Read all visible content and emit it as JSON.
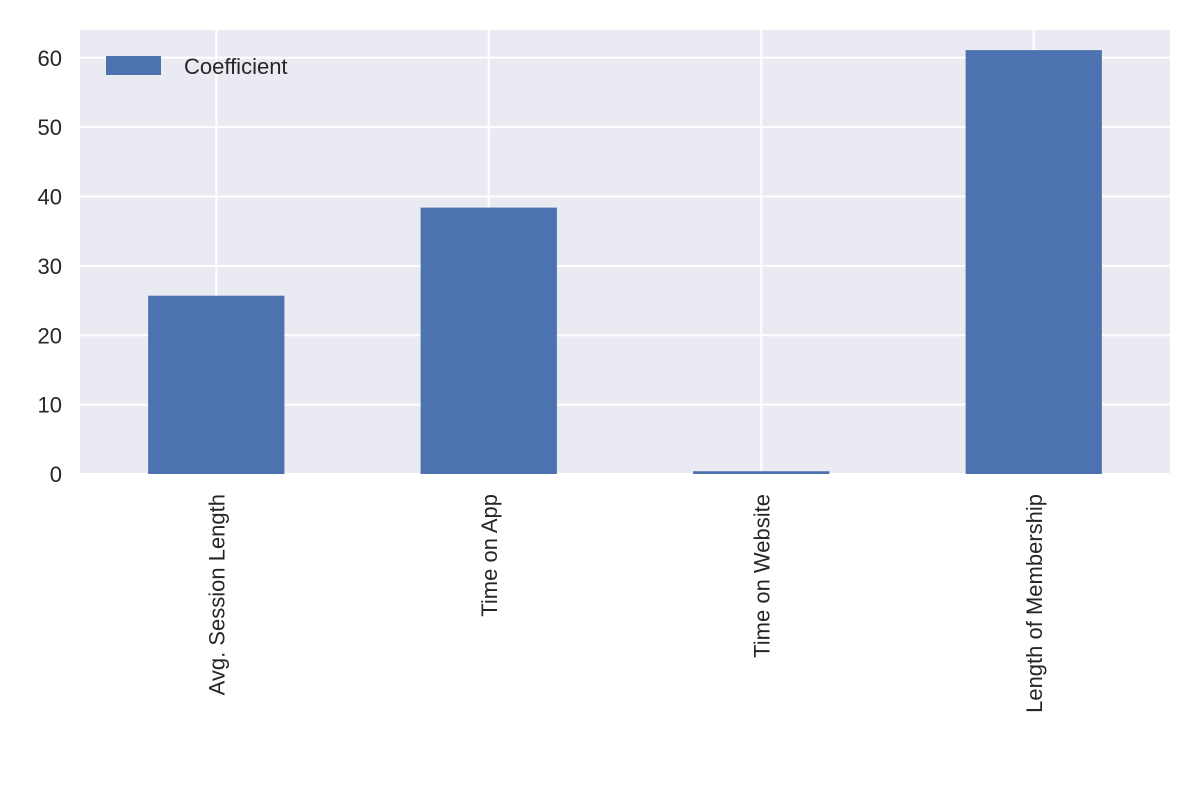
{
  "chart_data": {
    "type": "bar",
    "categories": [
      "Avg. Session Length",
      "Time on App",
      "Time on Website",
      "Length of Membership"
    ],
    "series": [
      {
        "name": "Coefficient",
        "values": [
          25.7,
          38.4,
          0.4,
          61.1
        ]
      }
    ],
    "ylim": [
      0,
      64
    ],
    "yticks": [
      0,
      10,
      20,
      30,
      40,
      50,
      60
    ],
    "xlabel": "",
    "ylabel": "",
    "grid": true,
    "legend": "top-left",
    "colors": {
      "bar": "#4c72b0",
      "plot_background": "#eaeaf2",
      "grid": "#ffffff",
      "text": "#262626"
    }
  }
}
